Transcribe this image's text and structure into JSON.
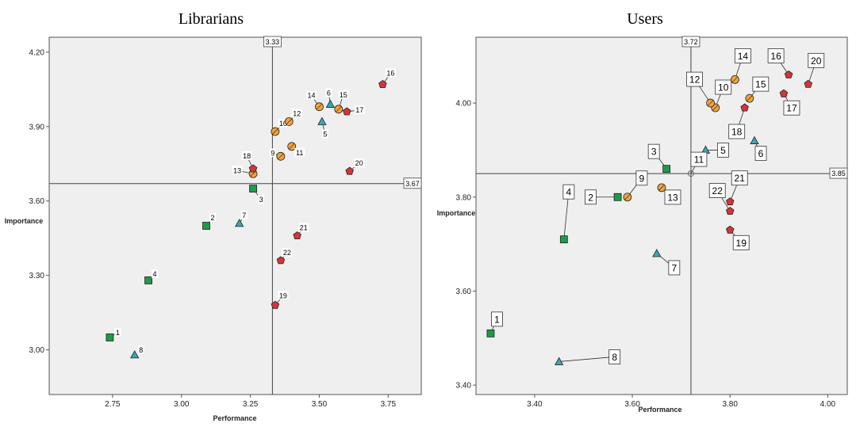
{
  "chart_data": [
    {
      "type": "scatter",
      "title": "Librarians",
      "xlabel": "Performance",
      "ylabel": "Importance",
      "xlim": [
        2.52,
        3.87
      ],
      "ylim": [
        2.82,
        4.26
      ],
      "xticks": [
        "2.75",
        "3.00",
        "3.25",
        "3.50",
        "3.75"
      ],
      "yticks": [
        "3.00",
        "3.30",
        "3.60",
        "3.90",
        "4.20"
      ],
      "ref_lines": {
        "x": 3.33,
        "x_label": "3.33",
        "y": 3.67,
        "y_label": "3.67"
      },
      "grid": false,
      "colors": {
        "square": "#1e9a4a",
        "circle": "#f2a33a",
        "triangle": "#3aa7b2",
        "pentagon": "#d8333a"
      },
      "points": [
        {
          "label": "1",
          "x": 2.74,
          "y": 3.05,
          "shape": "square"
        },
        {
          "label": "2",
          "x": 3.09,
          "y": 3.5,
          "shape": "square"
        },
        {
          "label": "3",
          "x": 3.26,
          "y": 3.65,
          "shape": "square"
        },
        {
          "label": "4",
          "x": 2.88,
          "y": 3.28,
          "shape": "square"
        },
        {
          "label": "5",
          "x": 3.51,
          "y": 3.92,
          "shape": "triangle"
        },
        {
          "label": "6",
          "x": 3.54,
          "y": 3.99,
          "shape": "triangle"
        },
        {
          "label": "7",
          "x": 3.21,
          "y": 3.51,
          "shape": "triangle"
        },
        {
          "label": "8",
          "x": 2.83,
          "y": 2.98,
          "shape": "triangle"
        },
        {
          "label": "9",
          "x": 3.36,
          "y": 3.78,
          "shape": "circle"
        },
        {
          "label": "10",
          "x": 3.34,
          "y": 3.88,
          "shape": "circle"
        },
        {
          "label": "11",
          "x": 3.4,
          "y": 3.82,
          "shape": "circle"
        },
        {
          "label": "12",
          "x": 3.39,
          "y": 3.92,
          "shape": "circle"
        },
        {
          "label": "13",
          "x": 3.26,
          "y": 3.71,
          "shape": "circle"
        },
        {
          "label": "14",
          "x": 3.5,
          "y": 3.98,
          "shape": "circle"
        },
        {
          "label": "15",
          "x": 3.57,
          "y": 3.97,
          "shape": "circle"
        },
        {
          "label": "16",
          "x": 3.73,
          "y": 4.07,
          "shape": "pentagon"
        },
        {
          "label": "17",
          "x": 3.6,
          "y": 3.96,
          "shape": "pentagon"
        },
        {
          "label": "18",
          "x": 3.26,
          "y": 3.73,
          "shape": "pentagon"
        },
        {
          "label": "19",
          "x": 3.34,
          "y": 3.18,
          "shape": "pentagon"
        },
        {
          "label": "20",
          "x": 3.61,
          "y": 3.72,
          "shape": "pentagon"
        },
        {
          "label": "21",
          "x": 3.42,
          "y": 3.46,
          "shape": "pentagon"
        },
        {
          "label": "22",
          "x": 3.36,
          "y": 3.36,
          "shape": "pentagon"
        }
      ]
    },
    {
      "type": "scatter",
      "title": "Users",
      "xlabel": "Performance",
      "ylabel": "Importance",
      "xlim": [
        3.28,
        4.04
      ],
      "ylim": [
        3.38,
        4.14
      ],
      "xticks": [
        "3.40",
        "3.60",
        "3.80",
        "4.00"
      ],
      "yticks": [
        "3.40",
        "3.60",
        "3.80",
        "4.00"
      ],
      "ref_lines": {
        "x": 3.72,
        "x_label": "3.72",
        "y": 3.85,
        "y_label": "3.85"
      },
      "grid": false,
      "colors": {
        "square": "#1e9a4a",
        "circle": "#f2a33a",
        "triangle": "#3aa7b2",
        "pentagon": "#d8333a",
        "hollow": "#999999"
      },
      "points": [
        {
          "label": "1",
          "x": 3.31,
          "y": 3.51,
          "shape": "square"
        },
        {
          "label": "2",
          "x": 3.57,
          "y": 3.8,
          "shape": "square"
        },
        {
          "label": "3",
          "x": 3.67,
          "y": 3.86,
          "shape": "square"
        },
        {
          "label": "4",
          "x": 3.46,
          "y": 3.71,
          "shape": "square"
        },
        {
          "label": "5",
          "x": 3.75,
          "y": 3.9,
          "shape": "triangle"
        },
        {
          "label": "6",
          "x": 3.85,
          "y": 3.92,
          "shape": "triangle"
        },
        {
          "label": "7",
          "x": 3.65,
          "y": 3.68,
          "shape": "triangle"
        },
        {
          "label": "8",
          "x": 3.45,
          "y": 3.45,
          "shape": "triangle"
        },
        {
          "label": "9",
          "x": 3.59,
          "y": 3.8,
          "shape": "circle"
        },
        {
          "label": "10",
          "x": 3.77,
          "y": 3.99,
          "shape": "circle"
        },
        {
          "label": "11",
          "x": 3.72,
          "y": 3.85,
          "shape": "hollow"
        },
        {
          "label": "12",
          "x": 3.76,
          "y": 4.0,
          "shape": "circle"
        },
        {
          "label": "13",
          "x": 3.66,
          "y": 3.82,
          "shape": "circle"
        },
        {
          "label": "14",
          "x": 3.81,
          "y": 4.05,
          "shape": "circle"
        },
        {
          "label": "15",
          "x": 3.84,
          "y": 4.01,
          "shape": "circle"
        },
        {
          "label": "16",
          "x": 3.92,
          "y": 4.06,
          "shape": "pentagon"
        },
        {
          "label": "17",
          "x": 3.91,
          "y": 4.02,
          "shape": "pentagon"
        },
        {
          "label": "18",
          "x": 3.83,
          "y": 3.99,
          "shape": "pentagon"
        },
        {
          "label": "19",
          "x": 3.8,
          "y": 3.73,
          "shape": "pentagon"
        },
        {
          "label": "20",
          "x": 3.96,
          "y": 4.04,
          "shape": "pentagon"
        },
        {
          "label": "21",
          "x": 3.8,
          "y": 3.79,
          "shape": "pentagon"
        },
        {
          "label": "22",
          "x": 3.8,
          "y": 3.77,
          "shape": "pentagon"
        }
      ]
    }
  ]
}
